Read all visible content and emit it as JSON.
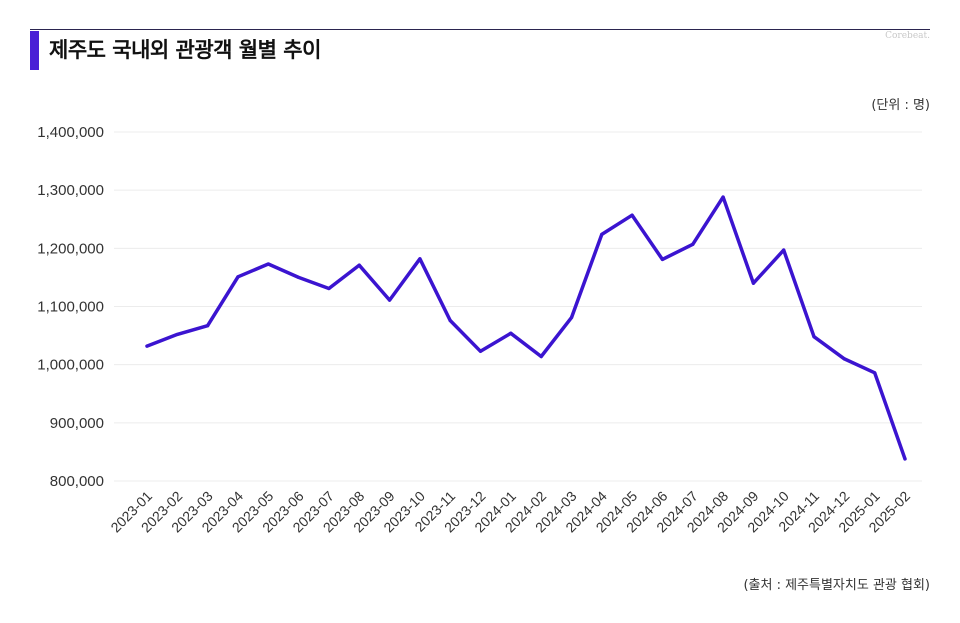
{
  "header": {
    "title": "제주도 국내외 관광객 월별 추이",
    "brand": "Corebeat."
  },
  "unit_label": "(단위 : 명)",
  "source_label": "(출처 : 제주특별자치도 관광 협회)",
  "colors": {
    "accent": "#4a1fd6",
    "line": "#3b14d0",
    "grid": "#ececec"
  },
  "chart_data": {
    "type": "line",
    "title": "제주도 국내외 관광객 월별 추이",
    "xlabel": "",
    "ylabel": "",
    "ylim": [
      800000,
      1400000
    ],
    "yticks": [
      800000,
      900000,
      1000000,
      1100000,
      1200000,
      1300000,
      1400000
    ],
    "ytick_labels": [
      "800,000",
      "900,000",
      "1,000,000",
      "1,100,000",
      "1,200,000",
      "1,300,000",
      "1,400,000"
    ],
    "grid": true,
    "legend": "none",
    "categories": [
      "2023-01",
      "2023-02",
      "2023-03",
      "2023-04",
      "2023-05",
      "2023-06",
      "2023-07",
      "2023-08",
      "2023-09",
      "2023-10",
      "2023-11",
      "2023-12",
      "2024-01",
      "2024-02",
      "2024-03",
      "2024-04",
      "2024-05",
      "2024-06",
      "2024-07",
      "2024-08",
      "2024-09",
      "2024-10",
      "2024-11",
      "2024-12",
      "2025-01",
      "2025-02"
    ],
    "series": [
      {
        "values": [
          1032000,
          1052000,
          1067000,
          1151000,
          1173000,
          1150000,
          1131000,
          1171000,
          1111000,
          1182000,
          1076000,
          1023000,
          1054000,
          1014000,
          1081000,
          1224000,
          1257000,
          1181000,
          1207000,
          1288000,
          1140000,
          1197000,
          1048000,
          1010000,
          986000,
          838000
        ]
      }
    ]
  }
}
